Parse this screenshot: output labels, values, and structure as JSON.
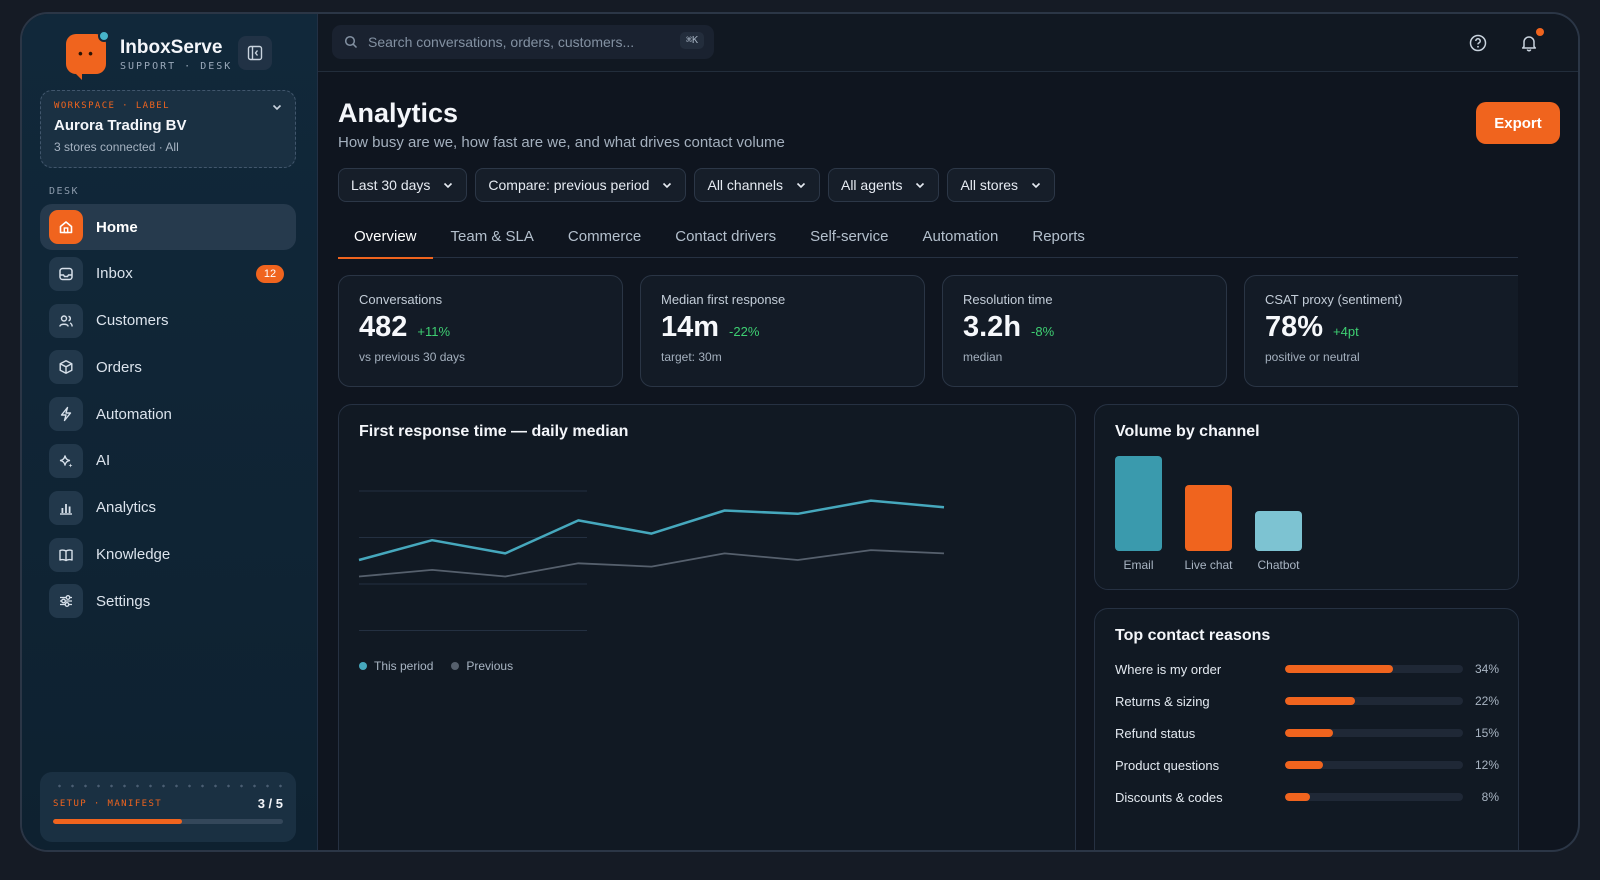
{
  "brand": {
    "name": "InboxServe",
    "subtitle": "SUPPORT · DESK",
    "logo_eyes": "• •"
  },
  "workspace": {
    "label": "WORKSPACE · LABEL",
    "name": "Aurora Trading BV",
    "detail": "3 stores connected · All"
  },
  "sidebar": {
    "section_label": "DESK",
    "items": [
      {
        "label": "Home",
        "icon": "home-icon",
        "active": true
      },
      {
        "label": "Inbox",
        "icon": "inbox-icon",
        "badge": "12"
      },
      {
        "label": "Customers",
        "icon": "users-icon"
      },
      {
        "label": "Orders",
        "icon": "box-icon"
      },
      {
        "label": "Automation",
        "icon": "bolt-icon"
      },
      {
        "label": "AI",
        "icon": "sparkle-icon"
      },
      {
        "label": "Analytics",
        "icon": "bar-chart-icon"
      },
      {
        "label": "Knowledge",
        "icon": "book-icon"
      },
      {
        "label": "Settings",
        "icon": "sliders-icon"
      }
    ],
    "setup": {
      "label": "SETUP · MANIFEST",
      "count": "3 / 5",
      "progress": 0.56
    }
  },
  "topbar": {
    "search_placeholder": "Search conversations, orders, customers...",
    "shortcut": "⌘K"
  },
  "page": {
    "title": "Analytics",
    "subtitle": "How busy are we, how fast are we, and what drives contact volume",
    "export_label": "Export"
  },
  "filters": [
    "Last 30 days",
    "Compare: previous period",
    "All channels",
    "All agents",
    "All stores"
  ],
  "tabs": [
    "Overview",
    "Team & SLA",
    "Commerce",
    "Contact drivers",
    "Self-service",
    "Automation",
    "Reports"
  ],
  "kpis": [
    {
      "title": "Conversations",
      "value": "482",
      "delta": "+11%",
      "sub": "vs previous 30 days"
    },
    {
      "title": "Median first response",
      "value": "14m",
      "delta": "-22%",
      "sub": "target: 30m"
    },
    {
      "title": "Resolution time",
      "value": "3.2h",
      "delta": "-8%",
      "sub": "median"
    },
    {
      "title": "CSAT proxy (sentiment)",
      "value": "78%",
      "delta": "+4pt",
      "sub": "positive or neutral"
    }
  ],
  "colors": {
    "accent": "#f0641e",
    "this_period": "#46a8bd",
    "previous": "#56606d",
    "positive": "#3ecf72"
  },
  "chart_data": [
    {
      "type": "line",
      "title": "First response time — daily median",
      "x": [
        1,
        2,
        3,
        4,
        5,
        6,
        7,
        8,
        9
      ],
      "series": [
        {
          "name": "This period",
          "values": [
            20,
            26,
            22,
            32,
            28,
            35,
            34,
            38,
            36
          ]
        },
        {
          "name": "Previous",
          "values": [
            15,
            17,
            15,
            19,
            18,
            22,
            20,
            23,
            22
          ]
        }
      ],
      "ylim": [
        0,
        50
      ],
      "grid": true,
      "legend": "bottom-left"
    },
    {
      "type": "bar",
      "title": "Volume by channel",
      "categories": [
        "Email",
        "Live chat",
        "Chatbot"
      ],
      "values": [
        95,
        66,
        40
      ],
      "colors": [
        "#3a9aad",
        "#f0641e",
        "#7dc3d2"
      ]
    },
    {
      "type": "bar",
      "title": "Top contact reasons",
      "categories": [
        "Where is my order",
        "Returns & sizing",
        "Refund status",
        "Product questions",
        "Discounts & codes"
      ],
      "values": [
        34,
        22,
        15,
        12,
        8
      ],
      "labels": [
        "34%",
        "22%",
        "15%",
        "12%",
        "8%"
      ]
    }
  ]
}
